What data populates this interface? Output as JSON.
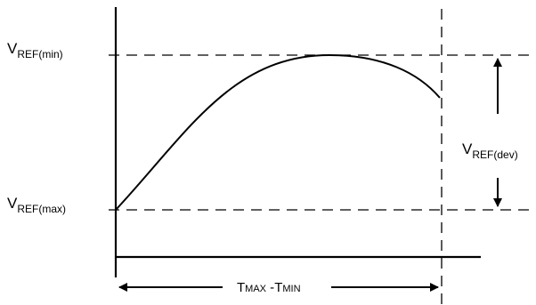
{
  "labels": {
    "vref_min": {
      "main": "V",
      "sub": "REF(min)"
    },
    "vref_max": {
      "main": "V",
      "sub": "REF(max)"
    },
    "vref_dev": {
      "main": "V",
      "sub": "REF(dev)"
    },
    "tmax_tmin": {
      "t1": "T",
      "s1": "MAX",
      "sep": " -",
      "t2": "T",
      "s2": "MIN"
    }
  },
  "colors": {
    "line": "#000000",
    "background": "#ffffff"
  }
}
